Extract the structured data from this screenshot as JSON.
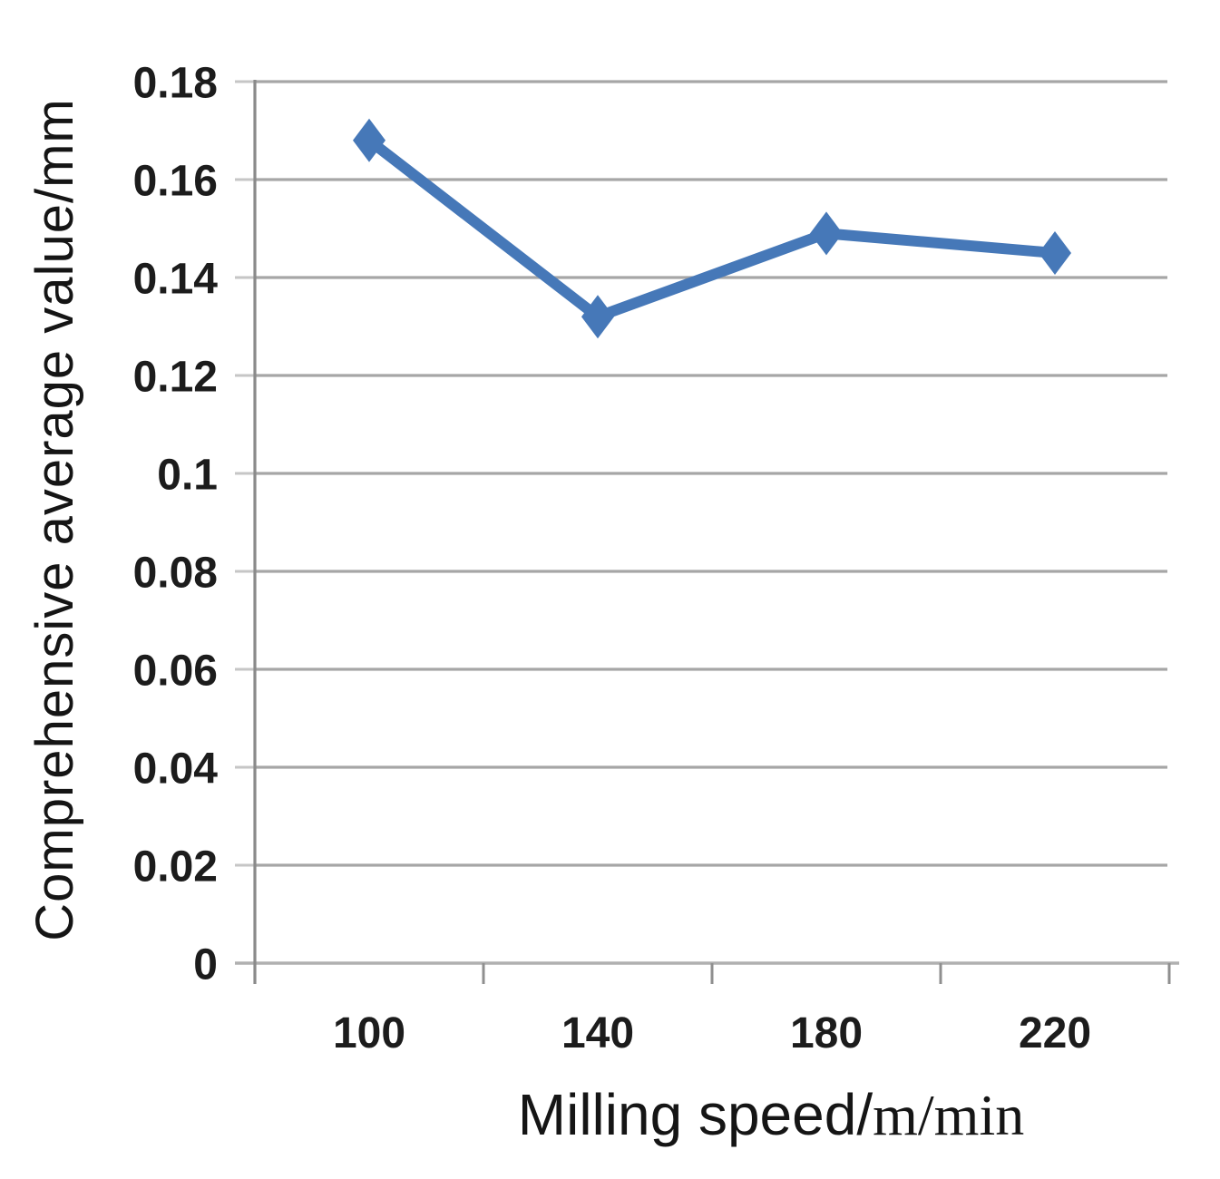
{
  "figure": {
    "background": "#ffffff"
  },
  "chart_data": {
    "type": "line",
    "title": "",
    "ylabel": "Comprehensive average value/mm",
    "xlabel": "Milling speed/m/min",
    "xlabel_parts": {
      "sans": "Milling speed/",
      "serif": "m/min"
    },
    "categories": [
      "100",
      "140",
      "180",
      "220"
    ],
    "series": [
      {
        "name": "Comprehensive average value",
        "values": [
          0.168,
          0.132,
          0.149,
          0.145
        ]
      }
    ],
    "ylim": [
      0,
      0.18
    ],
    "ytick_labels": [
      "0.18",
      "0.16",
      "0.14",
      "0.12",
      "0.1",
      "0.08",
      "0.06",
      "0.04",
      "0.02",
      "0"
    ],
    "ytick_values": [
      0.18,
      0.16,
      0.14,
      0.12,
      0.1,
      0.08,
      0.06,
      0.04,
      0.02,
      0
    ],
    "grid": true,
    "legend": false,
    "marker": "diamond",
    "colors": {
      "line": "#4678b8",
      "marker": "#4678b8",
      "gridline": "#a6a6a6",
      "x_axis_line": "#b0b0b0",
      "y_axis_line": "#8a8a8a",
      "tick_stub": "#c6c6c6",
      "x_tick_stub": "#8f8f8f",
      "tick_text": "#1c1c1c",
      "title_text": "#151515"
    }
  }
}
